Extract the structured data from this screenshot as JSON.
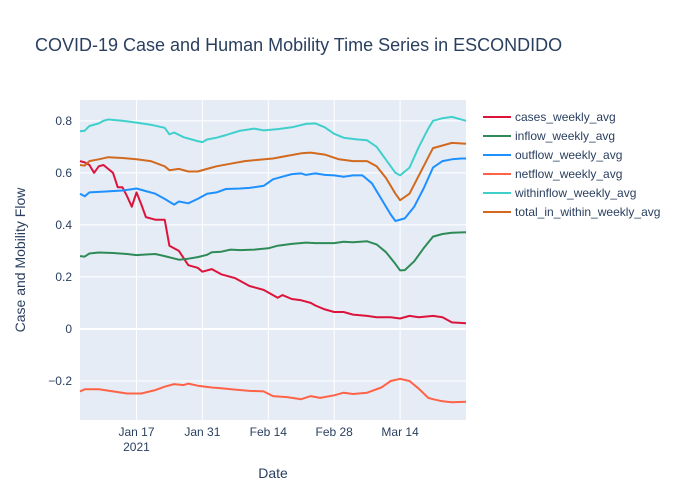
{
  "chart_data": {
    "type": "line",
    "title": "COVID-19 Case and Human Mobility Time Series in ESCONDIDO",
    "xlabel": "Date",
    "ylabel": "Case and Mobility Flow",
    "x_start": "2021-01-05",
    "x_end": "2021-03-28",
    "x_ticks": [
      {
        "date": "2021-01-17",
        "label": "Jan 17",
        "sublabel": "2021"
      },
      {
        "date": "2021-01-31",
        "label": "Jan 31",
        "sublabel": ""
      },
      {
        "date": "2021-02-14",
        "label": "Feb 14",
        "sublabel": ""
      },
      {
        "date": "2021-02-28",
        "label": "Feb 28",
        "sublabel": ""
      },
      {
        "date": "2021-03-14",
        "label": "Mar 14",
        "sublabel": ""
      }
    ],
    "ylim": [
      -0.35,
      0.88
    ],
    "y_ticks": [
      -0.2,
      0,
      0.2,
      0.4,
      0.6,
      0.8
    ],
    "y_tick_labels": [
      "−0.2",
      "0",
      "0.2",
      "0.4",
      "0.6",
      "0.8"
    ],
    "grid": true,
    "legend_position": "right",
    "series": [
      {
        "name": "cases_weekly_avg",
        "color": "#dc143c",
        "points": [
          [
            "2021-01-05",
            0.645
          ],
          [
            "2021-01-06",
            0.64
          ],
          [
            "2021-01-07",
            0.63
          ],
          [
            "2021-01-08",
            0.6
          ],
          [
            "2021-01-09",
            0.625
          ],
          [
            "2021-01-10",
            0.63
          ],
          [
            "2021-01-11",
            0.615
          ],
          [
            "2021-01-12",
            0.6
          ],
          [
            "2021-01-13",
            0.545
          ],
          [
            "2021-01-14",
            0.545
          ],
          [
            "2021-01-15",
            0.51
          ],
          [
            "2021-01-16",
            0.47
          ],
          [
            "2021-01-17",
            0.525
          ],
          [
            "2021-01-18",
            0.48
          ],
          [
            "2021-01-19",
            0.43
          ],
          [
            "2021-01-21",
            0.42
          ],
          [
            "2021-01-23",
            0.42
          ],
          [
            "2021-01-24",
            0.32
          ],
          [
            "2021-01-26",
            0.3
          ],
          [
            "2021-01-28",
            0.245
          ],
          [
            "2021-01-30",
            0.235
          ],
          [
            "2021-01-31",
            0.22
          ],
          [
            "2021-02-02",
            0.23
          ],
          [
            "2021-02-04",
            0.21
          ],
          [
            "2021-02-07",
            0.195
          ],
          [
            "2021-02-10",
            0.165
          ],
          [
            "2021-02-13",
            0.15
          ],
          [
            "2021-02-15",
            0.13
          ],
          [
            "2021-02-16",
            0.12
          ],
          [
            "2021-02-17",
            0.13
          ],
          [
            "2021-02-19",
            0.115
          ],
          [
            "2021-02-21",
            0.11
          ],
          [
            "2021-02-23",
            0.1
          ],
          [
            "2021-02-24",
            0.09
          ],
          [
            "2021-02-26",
            0.075
          ],
          [
            "2021-02-28",
            0.065
          ],
          [
            "2021-03-02",
            0.065
          ],
          [
            "2021-03-04",
            0.055
          ],
          [
            "2021-03-07",
            0.05
          ],
          [
            "2021-03-09",
            0.045
          ],
          [
            "2021-03-12",
            0.045
          ],
          [
            "2021-03-14",
            0.04
          ],
          [
            "2021-03-16",
            0.05
          ],
          [
            "2021-03-18",
            0.045
          ],
          [
            "2021-03-21",
            0.05
          ],
          [
            "2021-03-23",
            0.045
          ],
          [
            "2021-03-25",
            0.025
          ],
          [
            "2021-03-28",
            0.022
          ]
        ]
      },
      {
        "name": "inflow_weekly_avg",
        "color": "#2e8b57",
        "points": [
          [
            "2021-01-05",
            0.28
          ],
          [
            "2021-01-06",
            0.278
          ],
          [
            "2021-01-07",
            0.29
          ],
          [
            "2021-01-09",
            0.294
          ],
          [
            "2021-01-12",
            0.292
          ],
          [
            "2021-01-15",
            0.288
          ],
          [
            "2021-01-17",
            0.284
          ],
          [
            "2021-01-19",
            0.286
          ],
          [
            "2021-01-21",
            0.288
          ],
          [
            "2021-01-23",
            0.28
          ],
          [
            "2021-01-26",
            0.266
          ],
          [
            "2021-01-28",
            0.27
          ],
          [
            "2021-01-30",
            0.276
          ],
          [
            "2021-02-01",
            0.285
          ],
          [
            "2021-02-02",
            0.295
          ],
          [
            "2021-02-04",
            0.297
          ],
          [
            "2021-02-06",
            0.305
          ],
          [
            "2021-02-08",
            0.303
          ],
          [
            "2021-02-11",
            0.305
          ],
          [
            "2021-02-14",
            0.31
          ],
          [
            "2021-02-16",
            0.32
          ],
          [
            "2021-02-19",
            0.327
          ],
          [
            "2021-02-22",
            0.332
          ],
          [
            "2021-02-24",
            0.33
          ],
          [
            "2021-02-28",
            0.33
          ],
          [
            "2021-03-02",
            0.335
          ],
          [
            "2021-03-04",
            0.333
          ],
          [
            "2021-03-07",
            0.337
          ],
          [
            "2021-03-09",
            0.325
          ],
          [
            "2021-03-11",
            0.295
          ],
          [
            "2021-03-13",
            0.25
          ],
          [
            "2021-03-14",
            0.225
          ],
          [
            "2021-03-15",
            0.226
          ],
          [
            "2021-03-17",
            0.26
          ],
          [
            "2021-03-19",
            0.31
          ],
          [
            "2021-03-21",
            0.355
          ],
          [
            "2021-03-23",
            0.365
          ],
          [
            "2021-03-25",
            0.37
          ],
          [
            "2021-03-28",
            0.372
          ]
        ]
      },
      {
        "name": "outflow_weekly_avg",
        "color": "#1e90ff",
        "points": [
          [
            "2021-01-05",
            0.52
          ],
          [
            "2021-01-06",
            0.51
          ],
          [
            "2021-01-07",
            0.525
          ],
          [
            "2021-01-10",
            0.528
          ],
          [
            "2021-01-14",
            0.532
          ],
          [
            "2021-01-16",
            0.537
          ],
          [
            "2021-01-17",
            0.54
          ],
          [
            "2021-01-19",
            0.53
          ],
          [
            "2021-01-21",
            0.52
          ],
          [
            "2021-01-23",
            0.5
          ],
          [
            "2021-01-25",
            0.478
          ],
          [
            "2021-01-26",
            0.49
          ],
          [
            "2021-01-28",
            0.483
          ],
          [
            "2021-01-30",
            0.5
          ],
          [
            "2021-02-01",
            0.52
          ],
          [
            "2021-02-03",
            0.525
          ],
          [
            "2021-02-05",
            0.538
          ],
          [
            "2021-02-08",
            0.54
          ],
          [
            "2021-02-10",
            0.542
          ],
          [
            "2021-02-13",
            0.55
          ],
          [
            "2021-02-15",
            0.575
          ],
          [
            "2021-02-17",
            0.585
          ],
          [
            "2021-02-19",
            0.595
          ],
          [
            "2021-02-21",
            0.598
          ],
          [
            "2021-02-22",
            0.592
          ],
          [
            "2021-02-24",
            0.598
          ],
          [
            "2021-02-26",
            0.592
          ],
          [
            "2021-02-28",
            0.59
          ],
          [
            "2021-03-02",
            0.585
          ],
          [
            "2021-03-04",
            0.59
          ],
          [
            "2021-03-06",
            0.59
          ],
          [
            "2021-03-08",
            0.56
          ],
          [
            "2021-03-10",
            0.5
          ],
          [
            "2021-03-12",
            0.44
          ],
          [
            "2021-03-13",
            0.415
          ],
          [
            "2021-03-15",
            0.425
          ],
          [
            "2021-03-17",
            0.47
          ],
          [
            "2021-03-19",
            0.54
          ],
          [
            "2021-03-21",
            0.62
          ],
          [
            "2021-03-23",
            0.645
          ],
          [
            "2021-03-25",
            0.652
          ],
          [
            "2021-03-27",
            0.655
          ],
          [
            "2021-03-28",
            0.655
          ]
        ]
      },
      {
        "name": "netflow_weekly_avg",
        "color": "#ff6347",
        "points": [
          [
            "2021-01-05",
            -0.24
          ],
          [
            "2021-01-06",
            -0.232
          ],
          [
            "2021-01-09",
            -0.232
          ],
          [
            "2021-01-12",
            -0.24
          ],
          [
            "2021-01-15",
            -0.248
          ],
          [
            "2021-01-18",
            -0.248
          ],
          [
            "2021-01-21",
            -0.235
          ],
          [
            "2021-01-23",
            -0.222
          ],
          [
            "2021-01-25",
            -0.212
          ],
          [
            "2021-01-27",
            -0.216
          ],
          [
            "2021-01-28",
            -0.21
          ],
          [
            "2021-01-30",
            -0.218
          ],
          [
            "2021-02-02",
            -0.225
          ],
          [
            "2021-02-04",
            -0.228
          ],
          [
            "2021-02-07",
            -0.233
          ],
          [
            "2021-02-10",
            -0.238
          ],
          [
            "2021-02-13",
            -0.24
          ],
          [
            "2021-02-15",
            -0.258
          ],
          [
            "2021-02-18",
            -0.262
          ],
          [
            "2021-02-21",
            -0.27
          ],
          [
            "2021-02-23",
            -0.258
          ],
          [
            "2021-02-25",
            -0.265
          ],
          [
            "2021-02-28",
            -0.255
          ],
          [
            "2021-03-02",
            -0.245
          ],
          [
            "2021-03-04",
            -0.25
          ],
          [
            "2021-03-07",
            -0.245
          ],
          [
            "2021-03-10",
            -0.225
          ],
          [
            "2021-03-12",
            -0.2
          ],
          [
            "2021-03-14",
            -0.192
          ],
          [
            "2021-03-16",
            -0.2
          ],
          [
            "2021-03-18",
            -0.23
          ],
          [
            "2021-03-20",
            -0.265
          ],
          [
            "2021-03-21",
            -0.27
          ],
          [
            "2021-03-23",
            -0.278
          ],
          [
            "2021-03-25",
            -0.282
          ],
          [
            "2021-03-28",
            -0.28
          ]
        ]
      },
      {
        "name": "withinflow_weekly_avg",
        "color": "#40d0cc",
        "points": [
          [
            "2021-01-05",
            0.76
          ],
          [
            "2021-01-06",
            0.762
          ],
          [
            "2021-01-07",
            0.78
          ],
          [
            "2021-01-09",
            0.79
          ],
          [
            "2021-01-10",
            0.8
          ],
          [
            "2021-01-11",
            0.805
          ],
          [
            "2021-01-14",
            0.8
          ],
          [
            "2021-01-17",
            0.793
          ],
          [
            "2021-01-20",
            0.785
          ],
          [
            "2021-01-23",
            0.773
          ],
          [
            "2021-01-24",
            0.748
          ],
          [
            "2021-01-25",
            0.755
          ],
          [
            "2021-01-27",
            0.737
          ],
          [
            "2021-01-30",
            0.722
          ],
          [
            "2021-01-31",
            0.718
          ],
          [
            "2021-02-01",
            0.728
          ],
          [
            "2021-02-03",
            0.735
          ],
          [
            "2021-02-05",
            0.745
          ],
          [
            "2021-02-08",
            0.762
          ],
          [
            "2021-02-11",
            0.77
          ],
          [
            "2021-02-13",
            0.763
          ],
          [
            "2021-02-16",
            0.768
          ],
          [
            "2021-02-19",
            0.775
          ],
          [
            "2021-02-22",
            0.788
          ],
          [
            "2021-02-24",
            0.79
          ],
          [
            "2021-02-26",
            0.775
          ],
          [
            "2021-02-28",
            0.75
          ],
          [
            "2021-03-02",
            0.735
          ],
          [
            "2021-03-05",
            0.728
          ],
          [
            "2021-03-07",
            0.725
          ],
          [
            "2021-03-09",
            0.7
          ],
          [
            "2021-03-11",
            0.65
          ],
          [
            "2021-03-13",
            0.6
          ],
          [
            "2021-03-14",
            0.59
          ],
          [
            "2021-03-16",
            0.62
          ],
          [
            "2021-03-18",
            0.7
          ],
          [
            "2021-03-20",
            0.77
          ],
          [
            "2021-03-21",
            0.8
          ],
          [
            "2021-03-23",
            0.81
          ],
          [
            "2021-03-25",
            0.815
          ],
          [
            "2021-03-28",
            0.8
          ]
        ]
      },
      {
        "name": "total_in_within_weekly_avg",
        "color": "#d2691e",
        "points": [
          [
            "2021-01-05",
            0.63
          ],
          [
            "2021-01-06",
            0.628
          ],
          [
            "2021-01-07",
            0.645
          ],
          [
            "2021-01-09",
            0.652
          ],
          [
            "2021-01-11",
            0.66
          ],
          [
            "2021-01-14",
            0.657
          ],
          [
            "2021-01-17",
            0.652
          ],
          [
            "2021-01-20",
            0.645
          ],
          [
            "2021-01-23",
            0.625
          ],
          [
            "2021-01-24",
            0.61
          ],
          [
            "2021-01-26",
            0.615
          ],
          [
            "2021-01-28",
            0.605
          ],
          [
            "2021-01-30",
            0.605
          ],
          [
            "2021-02-01",
            0.615
          ],
          [
            "2021-02-03",
            0.625
          ],
          [
            "2021-02-06",
            0.635
          ],
          [
            "2021-02-09",
            0.645
          ],
          [
            "2021-02-12",
            0.65
          ],
          [
            "2021-02-15",
            0.655
          ],
          [
            "2021-02-18",
            0.665
          ],
          [
            "2021-02-21",
            0.675
          ],
          [
            "2021-02-23",
            0.678
          ],
          [
            "2021-02-26",
            0.67
          ],
          [
            "2021-03-01",
            0.652
          ],
          [
            "2021-03-04",
            0.645
          ],
          [
            "2021-03-07",
            0.645
          ],
          [
            "2021-03-09",
            0.625
          ],
          [
            "2021-03-11",
            0.58
          ],
          [
            "2021-03-13",
            0.52
          ],
          [
            "2021-03-14",
            0.495
          ],
          [
            "2021-03-16",
            0.52
          ],
          [
            "2021-03-18",
            0.59
          ],
          [
            "2021-03-20",
            0.66
          ],
          [
            "2021-03-21",
            0.695
          ],
          [
            "2021-03-23",
            0.705
          ],
          [
            "2021-03-25",
            0.715
          ],
          [
            "2021-03-28",
            0.712
          ]
        ]
      }
    ]
  }
}
